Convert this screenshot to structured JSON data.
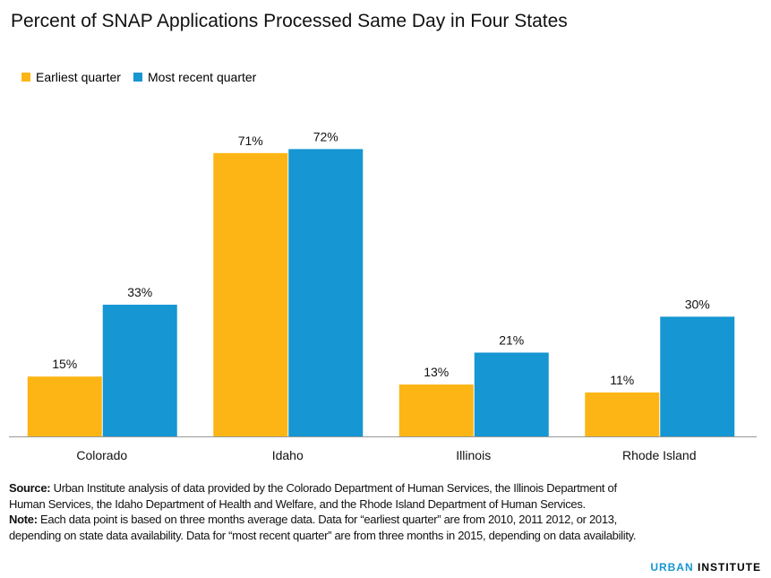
{
  "chart_data": {
    "type": "bar",
    "title": "Percent of SNAP Applications Processed Same Day in Four States",
    "categories": [
      "Colorado",
      "Idaho",
      "Illinois",
      "Rhode Island"
    ],
    "series": [
      {
        "name": "Earliest quarter",
        "values": [
          15,
          71,
          13,
          11
        ],
        "labels": [
          "15%",
          "71%",
          "13%",
          "11%"
        ],
        "color": "#fdb515"
      },
      {
        "name": "Most recent quarter",
        "values": [
          33,
          72,
          21,
          30
        ],
        "labels": [
          "33%",
          "72%",
          "21%",
          "30%"
        ],
        "color": "#1696d2"
      }
    ],
    "ylim": [
      0,
      75
    ],
    "xlabel": "",
    "ylabel": "",
    "grid": false,
    "legend": "top-left"
  },
  "footer": {
    "source_label": "Source:",
    "source_text": " Urban Institute analysis of data provided by the Colorado Department of Human Services, the Illinois Department of Human Services, the Idaho Department of Health and Welfare, and the Rhode Island Department of Human Services.",
    "note_label": "Note:",
    "note_text": "  Each data point is based on three months average data. Data for “earliest quarter” are from 2010, 2011 2012, or 2013, depending on state data availability.  Data for “most recent quarter” are from three months in 2015, depending on data availability."
  },
  "logo": {
    "part1": "URBAN",
    "part2": " INSTITUTE"
  }
}
